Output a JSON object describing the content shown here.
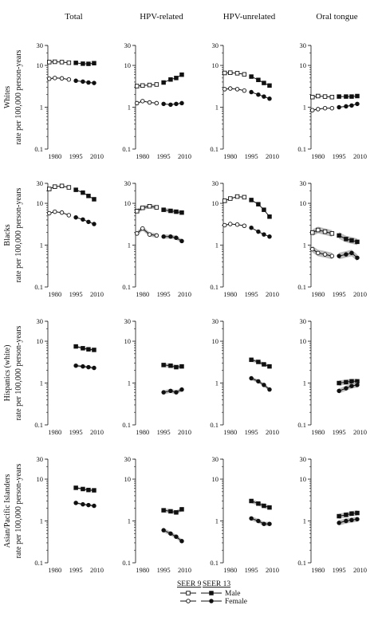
{
  "chart_data": {
    "type": "line",
    "columns": [
      "Total",
      "HPV-related",
      "HPV-unrelated",
      "Oral tongue"
    ],
    "rows": [
      {
        "group": "Whites",
        "ylabel": "rate per 100,000 person-years"
      },
      {
        "group": "Blacks",
        "ylabel": "rate per 100,000 person-years"
      },
      {
        "group": "Hispanics (white)",
        "ylabel": "rate per 100,000 person-years"
      },
      {
        "group": "Asian/Pacific Islanders",
        "ylabel": "rate per 100,000 person-years"
      }
    ],
    "y_scale": "log",
    "ylim": [
      0.1,
      30
    ],
    "y_ticks": [
      "30",
      "10",
      "1",
      "0.1"
    ],
    "xlim": [
      1975,
      2012
    ],
    "x_ticks": [
      "1980",
      "1995",
      "2010"
    ],
    "legend": {
      "headers": [
        "SEER 9",
        "SEER 13"
      ],
      "entries": [
        "Male",
        "Female"
      ]
    },
    "panels": [
      {
        "row": 0,
        "col": 0,
        "series": [
          {
            "sex": "male",
            "x": [
              1976,
              1980,
              1985,
              1990
            ],
            "y": [
              12.0,
              12.2,
              12.0,
              11.6
            ],
            "source": "SEER 9"
          },
          {
            "sex": "male",
            "x": [
              1995,
              2000,
              2004,
              2008
            ],
            "y": [
              11.5,
              11.0,
              10.9,
              11.3
            ],
            "source": "SEER 13"
          },
          {
            "sex": "female",
            "x": [
              1976,
              1980,
              1985,
              1990
            ],
            "y": [
              4.8,
              5.0,
              4.9,
              4.6
            ],
            "source": "SEER 9"
          },
          {
            "sex": "female",
            "x": [
              1995,
              2000,
              2004,
              2008
            ],
            "y": [
              4.3,
              4.1,
              3.9,
              3.8
            ],
            "source": "SEER 13"
          }
        ]
      },
      {
        "row": 0,
        "col": 1,
        "series": [
          {
            "sex": "male",
            "x": [
              1976,
              1980,
              1985,
              1990
            ],
            "y": [
              3.2,
              3.3,
              3.4,
              3.5
            ],
            "source": "SEER 9"
          },
          {
            "sex": "male",
            "x": [
              1995,
              2000,
              2004,
              2008
            ],
            "y": [
              3.9,
              4.6,
              5.0,
              6.0
            ],
            "source": "SEER 13"
          },
          {
            "sex": "female",
            "x": [
              1976,
              1980,
              1985,
              1990
            ],
            "y": [
              1.25,
              1.4,
              1.3,
              1.25
            ],
            "source": "SEER 9"
          },
          {
            "sex": "female",
            "x": [
              1995,
              2000,
              2004,
              2008
            ],
            "y": [
              1.2,
              1.15,
              1.2,
              1.25
            ],
            "source": "SEER 13"
          }
        ]
      },
      {
        "row": 0,
        "col": 2,
        "series": [
          {
            "sex": "male",
            "x": [
              1976,
              1980,
              1985,
              1990
            ],
            "y": [
              6.6,
              6.7,
              6.5,
              6.1
            ],
            "source": "SEER 9"
          },
          {
            "sex": "male",
            "x": [
              1995,
              2000,
              2004,
              2008
            ],
            "y": [
              5.4,
              4.5,
              3.8,
              3.3
            ],
            "source": "SEER 13"
          },
          {
            "sex": "female",
            "x": [
              1976,
              1980,
              1985,
              1990
            ],
            "y": [
              2.7,
              2.8,
              2.7,
              2.5
            ],
            "source": "SEER 9"
          },
          {
            "sex": "female",
            "x": [
              1995,
              2000,
              2004,
              2008
            ],
            "y": [
              2.3,
              2.0,
              1.8,
              1.6
            ],
            "source": "SEER 13"
          }
        ]
      },
      {
        "row": 0,
        "col": 3,
        "series": [
          {
            "sex": "male",
            "x": [
              1976,
              1980,
              1985,
              1990
            ],
            "y": [
              1.75,
              1.85,
              1.8,
              1.75
            ],
            "source": "SEER 9"
          },
          {
            "sex": "male",
            "x": [
              1995,
              2000,
              2004,
              2008
            ],
            "y": [
              1.8,
              1.8,
              1.8,
              1.85
            ],
            "source": "SEER 13"
          },
          {
            "sex": "female",
            "x": [
              1976,
              1980,
              1985,
              1990
            ],
            "y": [
              0.85,
              0.9,
              0.95,
              0.95
            ],
            "source": "SEER 9"
          },
          {
            "sex": "female",
            "x": [
              1995,
              2000,
              2004,
              2008
            ],
            "y": [
              1.0,
              1.05,
              1.1,
              1.2
            ],
            "source": "SEER 13"
          }
        ]
      },
      {
        "row": 1,
        "col": 0,
        "series": [
          {
            "sex": "male",
            "x": [
              1976,
              1980,
              1985,
              1990
            ],
            "y": [
              22,
              25,
              26,
              24
            ],
            "source": "SEER 9"
          },
          {
            "sex": "male",
            "x": [
              1995,
              2000,
              2004,
              2008
            ],
            "y": [
              21,
              18,
              15,
              12.5
            ],
            "source": "SEER 13"
          },
          {
            "sex": "female",
            "x": [
              1976,
              1980,
              1985,
              1990
            ],
            "y": [
              5.8,
              6.3,
              6.0,
              5.2
            ],
            "source": "SEER 9"
          },
          {
            "sex": "female",
            "x": [
              1995,
              2000,
              2004,
              2008
            ],
            "y": [
              4.6,
              4.1,
              3.6,
              3.2
            ],
            "source": "SEER 13"
          }
        ]
      },
      {
        "row": 1,
        "col": 1,
        "series": [
          {
            "sex": "male",
            "x": [
              1976,
              1980,
              1985,
              1990
            ],
            "y": [
              6.5,
              7.8,
              8.5,
              8.0
            ],
            "source": "SEER 9"
          },
          {
            "sex": "male",
            "x": [
              1995,
              2000,
              2004,
              2008
            ],
            "y": [
              7.0,
              6.6,
              6.3,
              6.0
            ],
            "source": "SEER 13"
          },
          {
            "sex": "female",
            "x": [
              1976,
              1980,
              1985,
              1990
            ],
            "y": [
              1.9,
              2.5,
              1.8,
              1.7
            ],
            "source": "SEER 9"
          },
          {
            "sex": "female",
            "x": [
              1995,
              2000,
              2004,
              2008
            ],
            "y": [
              1.6,
              1.6,
              1.5,
              1.25
            ],
            "source": "SEER 13"
          }
        ]
      },
      {
        "row": 1,
        "col": 2,
        "series": [
          {
            "sex": "male",
            "x": [
              1976,
              1980,
              1985,
              1990
            ],
            "y": [
              11.5,
              13.0,
              14.5,
              14.0
            ],
            "source": "SEER 9"
          },
          {
            "sex": "male",
            "x": [
              1995,
              2000,
              2004,
              2008
            ],
            "y": [
              12.0,
              9.5,
              7.0,
              4.8
            ],
            "source": "SEER 13"
          },
          {
            "sex": "female",
            "x": [
              1976,
              1980,
              1985,
              1990
            ],
            "y": [
              3.0,
              3.2,
              3.1,
              2.9
            ],
            "source": "SEER 9"
          },
          {
            "sex": "female",
            "x": [
              1995,
              2000,
              2004,
              2008
            ],
            "y": [
              2.6,
              2.1,
              1.8,
              1.6
            ],
            "source": "SEER 13"
          }
        ]
      },
      {
        "row": 1,
        "col": 3,
        "series": [
          {
            "sex": "male",
            "x": [
              1976,
              1980,
              1985,
              1990
            ],
            "y": [
              2.0,
              2.3,
              2.1,
              1.9
            ],
            "source": "SEER 9"
          },
          {
            "sex": "male",
            "x": [
              1995,
              2000,
              2004,
              2008
            ],
            "y": [
              1.7,
              1.4,
              1.3,
              1.2
            ],
            "source": "SEER 13"
          },
          {
            "sex": "female",
            "x": [
              1976,
              1980,
              1985,
              1990
            ],
            "y": [
              0.8,
              0.65,
              0.6,
              0.55
            ],
            "source": "SEER 9"
          },
          {
            "sex": "female",
            "x": [
              1995,
              2000,
              2004,
              2008
            ],
            "y": [
              0.55,
              0.6,
              0.65,
              0.5
            ],
            "source": "SEER 13"
          }
        ]
      },
      {
        "row": 2,
        "col": 0,
        "series": [
          {
            "sex": "male",
            "x": [
              1995,
              2000,
              2004,
              2008
            ],
            "y": [
              7.5,
              6.8,
              6.4,
              6.2
            ],
            "source": "SEER 13"
          },
          {
            "sex": "female",
            "x": [
              1995,
              2000,
              2004,
              2008
            ],
            "y": [
              2.6,
              2.5,
              2.4,
              2.3
            ],
            "source": "SEER 13"
          }
        ]
      },
      {
        "row": 2,
        "col": 1,
        "series": [
          {
            "sex": "male",
            "x": [
              1995,
              2000,
              2004,
              2008
            ],
            "y": [
              2.7,
              2.6,
              2.4,
              2.5
            ],
            "source": "SEER 13"
          },
          {
            "sex": "female",
            "x": [
              1995,
              2000,
              2004,
              2008
            ],
            "y": [
              0.6,
              0.65,
              0.6,
              0.7
            ],
            "source": "SEER 13"
          }
        ]
      },
      {
        "row": 2,
        "col": 2,
        "series": [
          {
            "sex": "male",
            "x": [
              1995,
              2000,
              2004,
              2008
            ],
            "y": [
              3.6,
              3.2,
              2.8,
              2.5
            ],
            "source": "SEER 13"
          },
          {
            "sex": "female",
            "x": [
              1995,
              2000,
              2004,
              2008
            ],
            "y": [
              1.3,
              1.1,
              0.9,
              0.7
            ],
            "source": "SEER 13"
          }
        ]
      },
      {
        "row": 2,
        "col": 3,
        "series": [
          {
            "sex": "male",
            "x": [
              1995,
              2000,
              2004,
              2008
            ],
            "y": [
              1.0,
              1.05,
              1.1,
              1.1
            ],
            "source": "SEER 13"
          },
          {
            "sex": "female",
            "x": [
              1995,
              2000,
              2004,
              2008
            ],
            "y": [
              0.65,
              0.75,
              0.85,
              0.9
            ],
            "source": "SEER 13"
          }
        ]
      },
      {
        "row": 3,
        "col": 0,
        "series": [
          {
            "sex": "male",
            "x": [
              1995,
              2000,
              2004,
              2008
            ],
            "y": [
              6.2,
              5.8,
              5.5,
              5.4
            ],
            "source": "SEER 13"
          },
          {
            "sex": "female",
            "x": [
              1995,
              2000,
              2004,
              2008
            ],
            "y": [
              2.7,
              2.5,
              2.4,
              2.3
            ],
            "source": "SEER 13"
          }
        ]
      },
      {
        "row": 3,
        "col": 1,
        "series": [
          {
            "sex": "male",
            "x": [
              1995,
              2000,
              2004,
              2008
            ],
            "y": [
              1.8,
              1.7,
              1.6,
              1.9
            ],
            "source": "SEER 13"
          },
          {
            "sex": "female",
            "x": [
              1995,
              2000,
              2004,
              2008
            ],
            "y": [
              0.6,
              0.5,
              0.42,
              0.33
            ],
            "source": "SEER 13"
          }
        ]
      },
      {
        "row": 3,
        "col": 2,
        "series": [
          {
            "sex": "male",
            "x": [
              1995,
              2000,
              2004,
              2008
            ],
            "y": [
              3.0,
              2.6,
              2.3,
              2.1
            ],
            "source": "SEER 13"
          },
          {
            "sex": "female",
            "x": [
              1995,
              2000,
              2004,
              2008
            ],
            "y": [
              1.15,
              1.0,
              0.85,
              0.85
            ],
            "source": "SEER 13"
          }
        ]
      },
      {
        "row": 3,
        "col": 3,
        "series": [
          {
            "sex": "male",
            "x": [
              1995,
              2000,
              2004,
              2008
            ],
            "y": [
              1.3,
              1.4,
              1.5,
              1.55
            ],
            "source": "SEER 13"
          },
          {
            "sex": "female",
            "x": [
              1995,
              2000,
              2004,
              2008
            ],
            "y": [
              0.9,
              1.0,
              1.05,
              1.1
            ],
            "source": "SEER 13"
          }
        ]
      }
    ]
  }
}
